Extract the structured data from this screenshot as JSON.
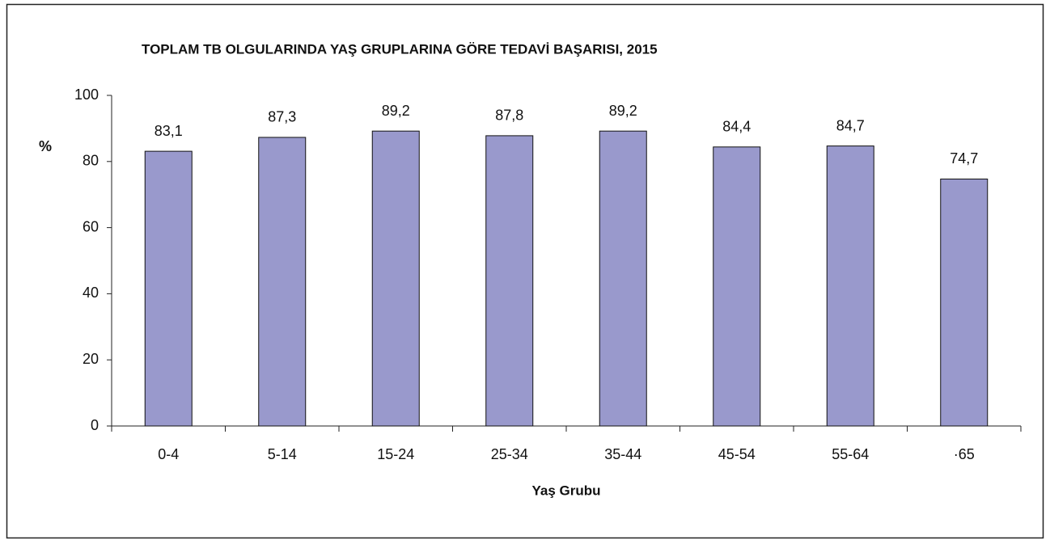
{
  "chart_data": {
    "type": "bar",
    "title": "TOPLAM TB OLGULARINDA YAŞ GRUPLARINA GÖRE TEDAVİ BAŞARISI, 2015",
    "y_label": "%",
    "x_label": "Yaş Grubu",
    "categories": [
      "0-4",
      "5-14",
      "15-24",
      "25-34",
      "35-44",
      "45-54",
      "55-64",
      "·65"
    ],
    "values": [
      83.1,
      87.3,
      89.2,
      87.8,
      89.2,
      84.4,
      84.7,
      74.7
    ],
    "value_labels": [
      "83,1",
      "87,3",
      "89,2",
      "87,8",
      "89,2",
      "84,4",
      "84,7",
      "74,7"
    ],
    "color": "#9999cc",
    "ylim": [
      0,
      100
    ],
    "yticks": [
      0,
      20,
      40,
      60,
      80,
      100
    ],
    "grid": false
  }
}
